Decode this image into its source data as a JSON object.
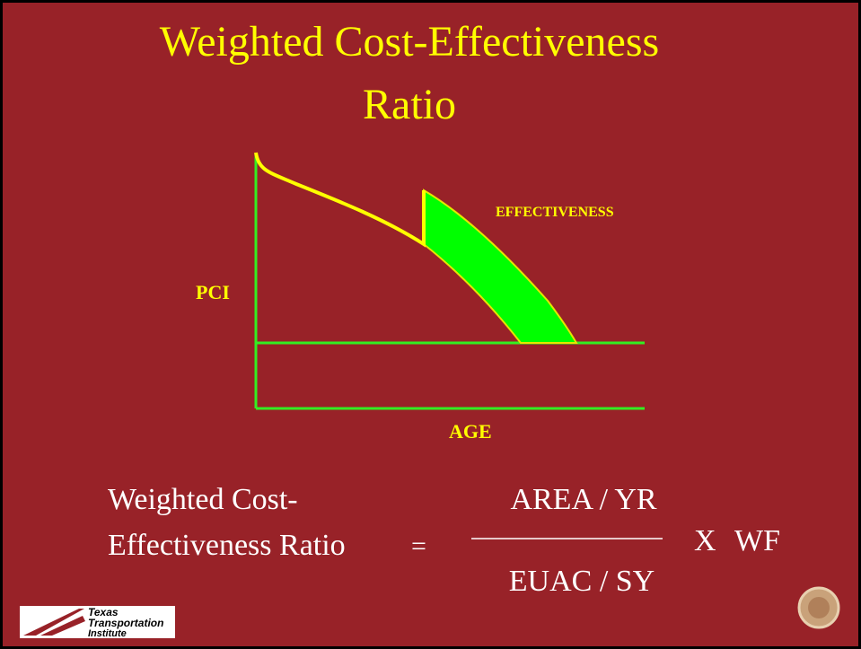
{
  "slide": {
    "title_line1": "Weighted Cost-Effectiveness",
    "title_line2": "Ratio",
    "diagram": {
      "y_label": "PCI",
      "x_label": "AGE",
      "area_label": "EFFECTIVENESS"
    },
    "formula": {
      "lhs_line1": "Weighted Cost-",
      "lhs_line2": "Effectiveness Ratio",
      "equals": "=",
      "numerator": "AREA / YR",
      "denominator": "EUAC / SY",
      "times": "X",
      "factor": "WF"
    },
    "logo": {
      "line1": "Texas",
      "line2": "Transportation",
      "line3": "Institute"
    }
  }
}
